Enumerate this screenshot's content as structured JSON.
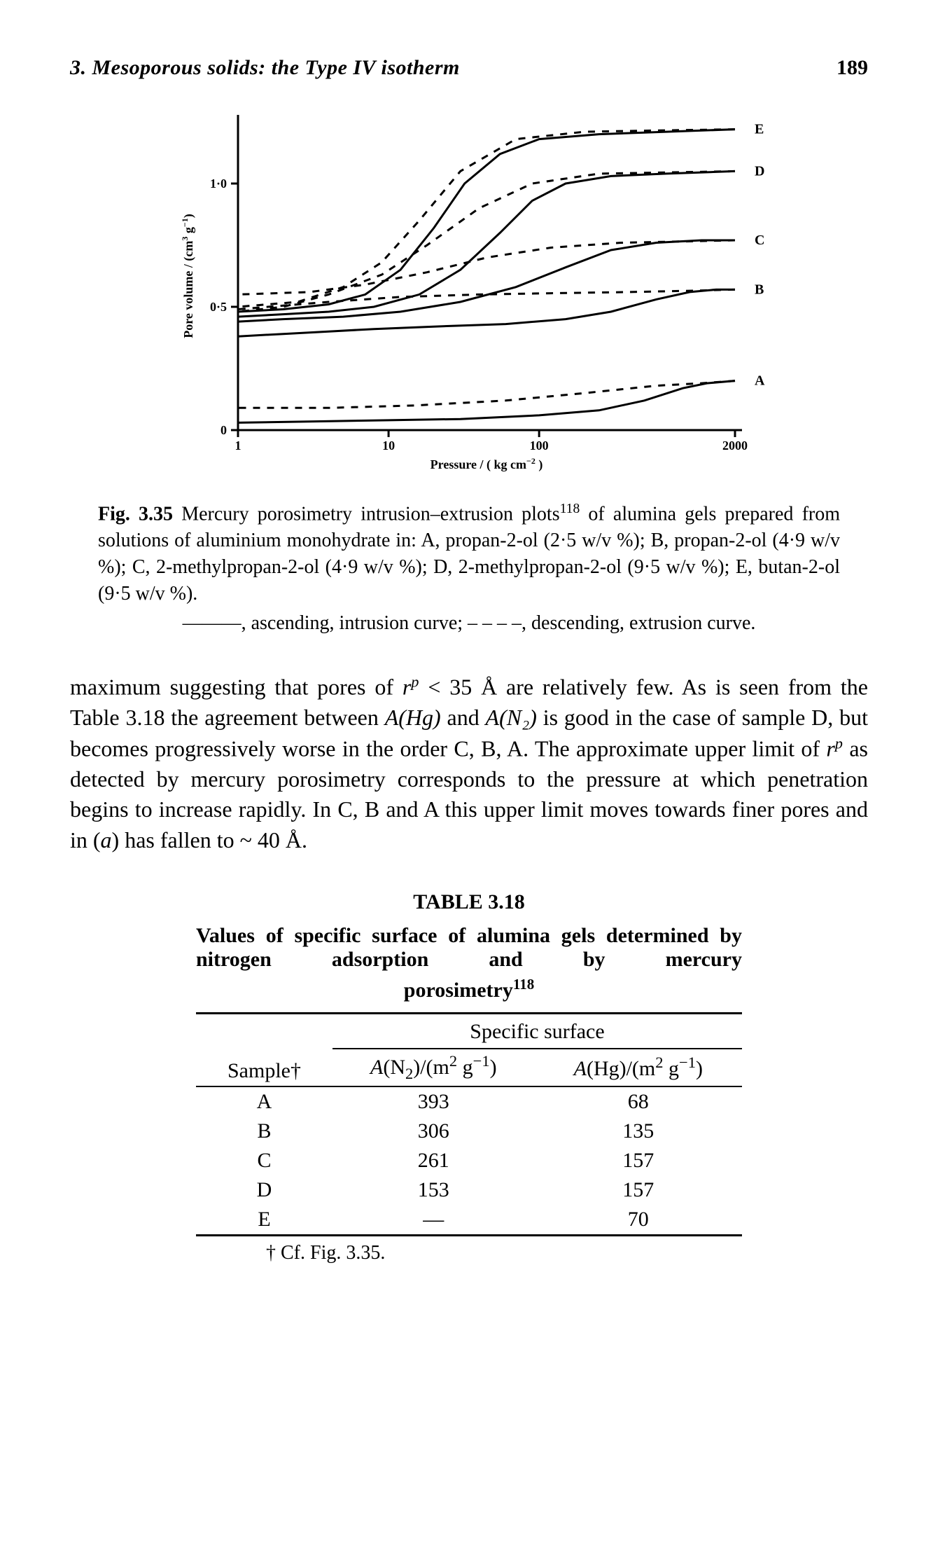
{
  "header": {
    "left": "3. Mesoporous solids: the Type IV isotherm",
    "page_number": "189"
  },
  "figure": {
    "type": "line",
    "background_color": "#ffffff",
    "axis_color": "#000000",
    "line_width_axis": 3,
    "line_width_curve_solid": 3,
    "line_width_curve_dashed": 3,
    "dash_pattern": "10,10",
    "xlabel_html": "Pressure / ( kg cm<sup>−2</sup> )",
    "ylabel_html": "Pore volume / (cm<sup>3</sup> g<sup>−1</sup>)",
    "label_fontsize": 18,
    "tick_fontsize": 18,
    "series_label_fontsize": 20,
    "x_scale": "log",
    "xlim": [
      1,
      2000
    ],
    "xticks": [
      1,
      10,
      100,
      2000
    ],
    "xtick_labels": [
      "1",
      "10",
      "100",
      "2000"
    ],
    "ylim": [
      0,
      1.25
    ],
    "yticks": [
      0,
      0.5,
      1.0
    ],
    "ytick_labels": [
      "0",
      "0·5",
      "1·0"
    ],
    "series_labels": [
      "A",
      "B",
      "C",
      "D",
      "E"
    ],
    "series_color": "#000000",
    "A_ascending": [
      [
        1,
        0.03
      ],
      [
        3,
        0.035
      ],
      [
        10,
        0.04
      ],
      [
        30,
        0.045
      ],
      [
        100,
        0.06
      ],
      [
        250,
        0.08
      ],
      [
        500,
        0.12
      ],
      [
        900,
        0.17
      ],
      [
        1300,
        0.19
      ],
      [
        2000,
        0.2
      ]
    ],
    "A_descending": [
      [
        2000,
        0.2
      ],
      [
        1200,
        0.19
      ],
      [
        600,
        0.18
      ],
      [
        200,
        0.15
      ],
      [
        60,
        0.12
      ],
      [
        15,
        0.1
      ],
      [
        4,
        0.09
      ],
      [
        1,
        0.09
      ]
    ],
    "B_ascending": [
      [
        1,
        0.38
      ],
      [
        2,
        0.39
      ],
      [
        4,
        0.4
      ],
      [
        8,
        0.41
      ],
      [
        20,
        0.42
      ],
      [
        60,
        0.43
      ],
      [
        150,
        0.45
      ],
      [
        300,
        0.48
      ],
      [
        600,
        0.53
      ],
      [
        1000,
        0.56
      ],
      [
        1500,
        0.57
      ],
      [
        2000,
        0.57
      ]
    ],
    "B_descending": [
      [
        2000,
        0.57
      ],
      [
        1000,
        0.565
      ],
      [
        400,
        0.56
      ],
      [
        120,
        0.555
      ],
      [
        40,
        0.55
      ],
      [
        12,
        0.54
      ],
      [
        4,
        0.52
      ],
      [
        1,
        0.49
      ]
    ],
    "C_ascending": [
      [
        1,
        0.44
      ],
      [
        2,
        0.45
      ],
      [
        5,
        0.46
      ],
      [
        12,
        0.48
      ],
      [
        30,
        0.52
      ],
      [
        70,
        0.58
      ],
      [
        150,
        0.66
      ],
      [
        300,
        0.73
      ],
      [
        600,
        0.76
      ],
      [
        1200,
        0.77
      ],
      [
        2000,
        0.77
      ]
    ],
    "C_descending": [
      [
        2000,
        0.77
      ],
      [
        900,
        0.765
      ],
      [
        350,
        0.76
      ],
      [
        120,
        0.74
      ],
      [
        45,
        0.7
      ],
      [
        18,
        0.64
      ],
      [
        7,
        0.59
      ],
      [
        3,
        0.56
      ],
      [
        1,
        0.55
      ]
    ],
    "D_ascending": [
      [
        1,
        0.46
      ],
      [
        2,
        0.47
      ],
      [
        4,
        0.48
      ],
      [
        8,
        0.5
      ],
      [
        16,
        0.55
      ],
      [
        30,
        0.65
      ],
      [
        55,
        0.8
      ],
      [
        90,
        0.93
      ],
      [
        150,
        1.0
      ],
      [
        300,
        1.03
      ],
      [
        700,
        1.04
      ],
      [
        2000,
        1.05
      ]
    ],
    "D_descending": [
      [
        2000,
        1.05
      ],
      [
        700,
        1.045
      ],
      [
        250,
        1.04
      ],
      [
        90,
        1.0
      ],
      [
        40,
        0.9
      ],
      [
        18,
        0.75
      ],
      [
        9,
        0.63
      ],
      [
        4,
        0.55
      ],
      [
        2,
        0.5
      ],
      [
        1,
        0.48
      ]
    ],
    "E_ascending": [
      [
        1,
        0.48
      ],
      [
        2,
        0.49
      ],
      [
        4,
        0.51
      ],
      [
        7,
        0.55
      ],
      [
        12,
        0.65
      ],
      [
        20,
        0.82
      ],
      [
        32,
        1.0
      ],
      [
        55,
        1.12
      ],
      [
        100,
        1.18
      ],
      [
        250,
        1.2
      ],
      [
        700,
        1.21
      ],
      [
        2000,
        1.22
      ]
    ],
    "E_descending": [
      [
        2000,
        1.22
      ],
      [
        600,
        1.215
      ],
      [
        200,
        1.21
      ],
      [
        70,
        1.18
      ],
      [
        30,
        1.05
      ],
      [
        16,
        0.85
      ],
      [
        9,
        0.68
      ],
      [
        5,
        0.58
      ],
      [
        2.5,
        0.52
      ],
      [
        1,
        0.5
      ]
    ]
  },
  "caption": {
    "prefix_bold": "Fig. 3.35",
    "body_part1": " Mercury porosimetry intrusion–extrusion plots",
    "ref_sup": "118",
    "body_part2": " of alumina gels prepared from solutions of aluminium monohydrate in: A, propan-2-ol (2·5 w/v %);   B,   propan-2-ol   (4·9 w/v %);   C,   2-methylpropan-2-ol (4·9 w/v %); D, 2-methylpropan-2-ol (9·5 w/v %); E, butan-2-ol (9·5 w/v %).",
    "line2": "———, ascending, intrusion curve;  – – – –, descending, extrusion curve."
  },
  "body": {
    "p1_a": "maximum suggesting that pores of ",
    "p1_rp1": "r",
    "p1_rp1_sup": "p",
    "p1_b": " < 35 Å are relatively few. As is seen from the Table 3.18 the agreement between ",
    "p1_AHg": "A(Hg)",
    "p1_c": " and ",
    "p1_AN2": "A(N₂)",
    "p1_d": " is good in the case of sample D, but becomes progressively worse in the order C, B, A. The approximate upper limit of ",
    "p1_rp2": "r",
    "p1_rp2_sup": "p",
    "p1_e": " as detected by mercury porosimetry corresponds to the pressure at which penetration begins to increase rapidly. In C, B and A this upper limit moves towards finer pores and in (",
    "p1_a_it": "a",
    "p1_f": ") has fallen to ~ 40 Å."
  },
  "table": {
    "title": "TABLE 3.18",
    "subtitle_line1": "Values of specific surface of alumina gels determined by   nitrogen   adsorption   and   by   mercury",
    "subtitle_line2_a": "porosimetry",
    "subtitle_line2_sup": "118",
    "col0": "Sample†",
    "group_header": "Specific surface",
    "col1_html": "A(N₂)/(m² g⁻¹)",
    "col2_html": "A(Hg)/(m² g⁻¹)",
    "rows": [
      {
        "s": "A",
        "n2": "393",
        "hg": "68"
      },
      {
        "s": "B",
        "n2": "306",
        "hg": "135"
      },
      {
        "s": "C",
        "n2": "261",
        "hg": "157"
      },
      {
        "s": "D",
        "n2": "153",
        "hg": "157"
      },
      {
        "s": "E",
        "n2": "—",
        "hg": "70"
      }
    ],
    "footnote": "† Cf. Fig. 3.35."
  },
  "colors": {
    "text": "#000000",
    "background": "#ffffff"
  }
}
